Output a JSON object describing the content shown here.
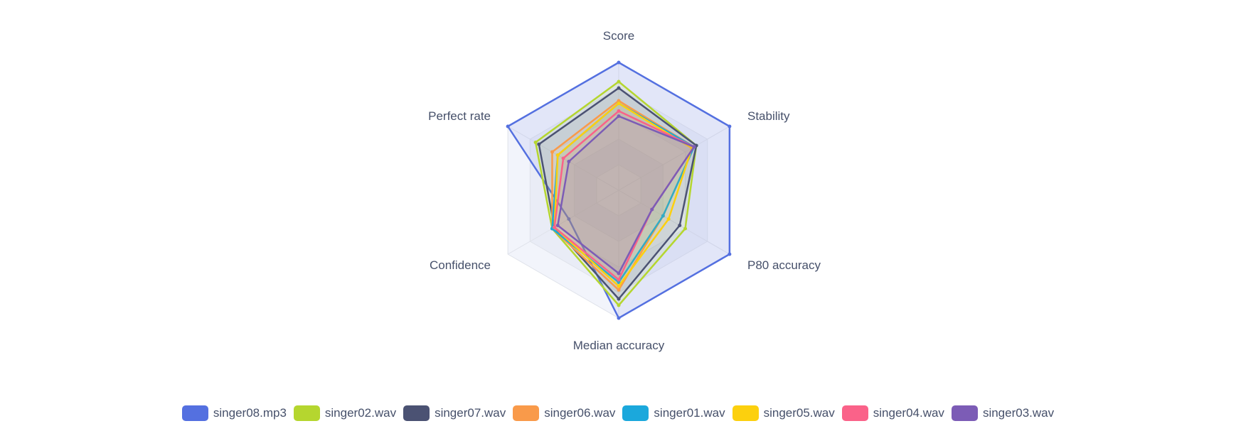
{
  "chart_data": {
    "type": "radar",
    "indicators": [
      "Score",
      "Stability",
      "P80 accuracy",
      "Median accuracy",
      "Confidence",
      "Perfect rate"
    ],
    "max": 100,
    "series": [
      {
        "name": "singer08.mp3",
        "color": "#5470e0",
        "values": [
          100,
          100,
          100,
          100,
          45,
          100
        ]
      },
      {
        "name": "singer02.wav",
        "color": "#b5d62f",
        "values": [
          85,
          70,
          60,
          90,
          60,
          75
        ]
      },
      {
        "name": "singer07.wav",
        "color": "#4b5273",
        "values": [
          80,
          70,
          55,
          85,
          58,
          72
        ]
      },
      {
        "name": "singer06.wav",
        "color": "#f99a4a",
        "values": [
          70,
          68,
          40,
          78,
          60,
          60
        ]
      },
      {
        "name": "singer01.wav",
        "color": "#1ba8dc",
        "values": [
          68,
          68,
          40,
          72,
          60,
          55
        ]
      },
      {
        "name": "singer05.wav",
        "color": "#fcd00e",
        "values": [
          68,
          66,
          45,
          75,
          58,
          55
        ]
      },
      {
        "name": "singer04.wav",
        "color": "#fa6289",
        "values": [
          62,
          68,
          30,
          70,
          58,
          50
        ]
      },
      {
        "name": "singer03.wav",
        "color": "#7c5cb6",
        "values": [
          58,
          68,
          30,
          65,
          55,
          45
        ]
      }
    ]
  }
}
